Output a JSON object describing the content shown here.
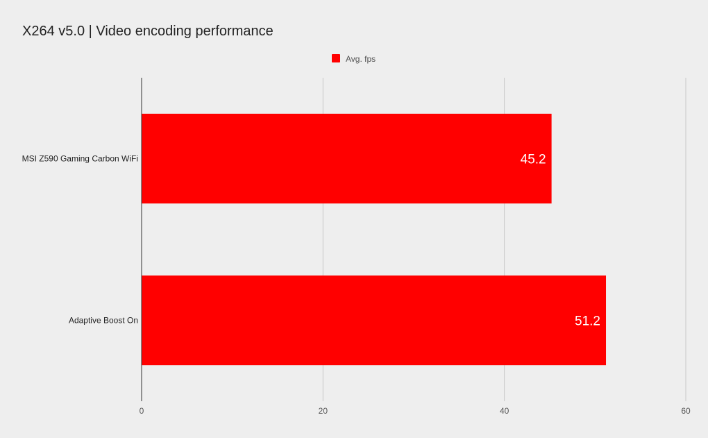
{
  "chart_data": {
    "type": "bar",
    "orientation": "horizontal",
    "title": "X264 v5.0 | Video encoding performance",
    "categories": [
      "MSI Z590 Gaming Carbon WiFi",
      "Adaptive Boost On"
    ],
    "series": [
      {
        "name": "Avg. fps",
        "color": "#ff0000",
        "values": [
          45.2,
          51.2
        ]
      }
    ],
    "xlim": [
      0,
      60
    ],
    "x_ticks": [
      0,
      20,
      40,
      60
    ],
    "x_tick_labels": [
      "0",
      "20",
      "40",
      "60"
    ],
    "data_labels": [
      "45.2",
      "51.2"
    ],
    "xlabel": "",
    "ylabel": "",
    "grid": true,
    "legend": {
      "position": "top-center",
      "entries": [
        "Avg. fps"
      ]
    },
    "colors": {
      "background": "#eeeeee",
      "gridline": "#c8c8c8",
      "axis": "#333333",
      "bar": "#ff0000"
    }
  }
}
